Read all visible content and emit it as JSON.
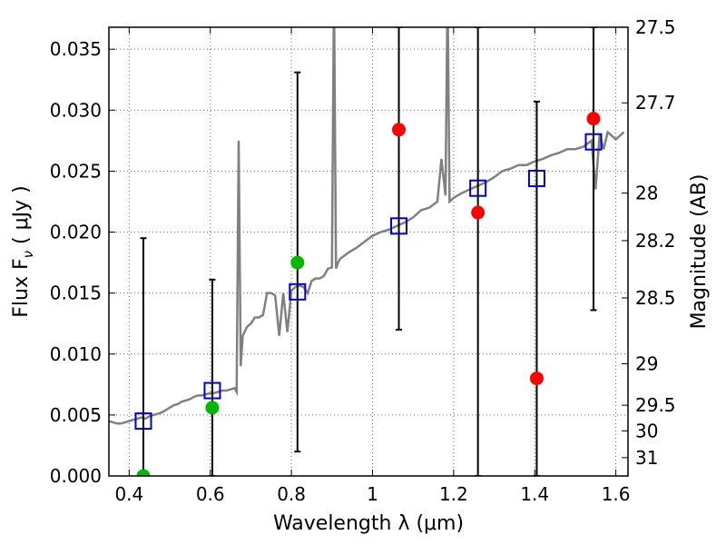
{
  "chart_data": {
    "type": "scatter",
    "xlabel": "Wavelength  λ (μm)",
    "ylabel": "Flux  F",
    "ylabel_subscript": "ν",
    "ylabel_unit": "  ( μJy )",
    "y2label": "Magnitude (AB)",
    "xlim": [
      0.35,
      1.63
    ],
    "ylim": [
      0.0,
      0.0368
    ],
    "grid": true,
    "x_ticks": [
      0.4,
      0.6,
      0.8,
      1.0,
      1.2,
      1.4,
      1.6
    ],
    "x_tick_labels": [
      "0.4",
      "0.6",
      "0.8",
      "1",
      "1.2",
      "1.4",
      "1.6"
    ],
    "y_ticks": [
      0.0,
      0.005,
      0.01,
      0.015,
      0.02,
      0.025,
      0.03,
      0.035
    ],
    "y_tick_labels": [
      "0.000",
      "0.005",
      "0.010",
      "0.015",
      "0.020",
      "0.025",
      "0.030",
      "0.035"
    ],
    "y2_tick_labels": [
      "27.5",
      "27.7",
      "28",
      "28.2",
      "28.5",
      "29",
      "29.5",
      "30",
      "31"
    ],
    "y2_tick_flux": [
      0.0368,
      0.0306,
      0.0232,
      0.0193,
      0.0146,
      0.0092,
      0.0058,
      0.0037,
      0.0015
    ],
    "colors": {
      "spectrum": "#808080",
      "model": "#0000cc",
      "detection": "#ff0000",
      "green": "#00b800",
      "errorbar": "#000000"
    },
    "series": [
      {
        "kind": "spectrum",
        "x": [
          0.35,
          0.36,
          0.37,
          0.38,
          0.39,
          0.4,
          0.41,
          0.42,
          0.43,
          0.44,
          0.45,
          0.46,
          0.47,
          0.48,
          0.49,
          0.5,
          0.51,
          0.52,
          0.53,
          0.54,
          0.55,
          0.56,
          0.57,
          0.58,
          0.59,
          0.6,
          0.61,
          0.62,
          0.63,
          0.64,
          0.65,
          0.66,
          0.665,
          0.67,
          0.675,
          0.68,
          0.69,
          0.7,
          0.71,
          0.72,
          0.73,
          0.74,
          0.75,
          0.76,
          0.77,
          0.78,
          0.79,
          0.8,
          0.81,
          0.82,
          0.83,
          0.84,
          0.85,
          0.86,
          0.87,
          0.88,
          0.89,
          0.9,
          0.905,
          0.91,
          0.915,
          0.92,
          0.94,
          0.96,
          0.98,
          1.0,
          1.02,
          1.04,
          1.06,
          1.08,
          1.1,
          1.12,
          1.14,
          1.16,
          1.17,
          1.18,
          1.185,
          1.19,
          1.2,
          1.22,
          1.24,
          1.26,
          1.28,
          1.3,
          1.32,
          1.34,
          1.36,
          1.38,
          1.4,
          1.42,
          1.44,
          1.46,
          1.48,
          1.5,
          1.52,
          1.54,
          1.55,
          1.56,
          1.57,
          1.58,
          1.6,
          1.62
        ],
        "y": [
          0.0045,
          0.0044,
          0.0043,
          0.0043,
          0.0044,
          0.0045,
          0.0046,
          0.0047,
          0.0048,
          0.0047,
          0.0049,
          0.005,
          0.0051,
          0.0052,
          0.0054,
          0.0056,
          0.0058,
          0.0059,
          0.0061,
          0.0062,
          0.0063,
          0.0065,
          0.0066,
          0.0066,
          0.0067,
          0.0068,
          0.0068,
          0.0069,
          0.007,
          0.007,
          0.0071,
          0.0072,
          0.0069,
          0.0275,
          0.009,
          0.0115,
          0.0122,
          0.0125,
          0.013,
          0.013,
          0.0132,
          0.015,
          0.015,
          0.0148,
          0.0115,
          0.015,
          0.0118,
          0.0152,
          0.0155,
          0.0156,
          0.0155,
          0.015,
          0.016,
          0.0162,
          0.0162,
          0.0164,
          0.017,
          0.0171,
          0.04,
          0.017,
          0.0175,
          0.0178,
          0.0183,
          0.0187,
          0.0192,
          0.0197,
          0.02,
          0.0202,
          0.0205,
          0.0208,
          0.0212,
          0.0218,
          0.022,
          0.0225,
          0.026,
          0.023,
          0.04,
          0.0225,
          0.0228,
          0.0232,
          0.0235,
          0.0238,
          0.0241,
          0.0245,
          0.025,
          0.0252,
          0.0255,
          0.0255,
          0.0258,
          0.026,
          0.0263,
          0.0265,
          0.0268,
          0.0268,
          0.027,
          0.0275,
          0.0235,
          0.028,
          0.0268,
          0.0282,
          0.0276,
          0.0282
        ]
      },
      {
        "kind": "errorbars",
        "x": [
          0.435,
          0.605,
          0.815,
          1.065,
          1.26,
          1.405,
          1.545
        ],
        "y": [
          0.0,
          0.0,
          0.0,
          0.0284,
          0.0216,
          0.008,
          0.0293
        ],
        "ylow": [
          0.0,
          0.0,
          0.002,
          0.012,
          0.0,
          0.0,
          0.0136
        ],
        "yhigh": [
          0.0195,
          0.0161,
          0.0331,
          0.0368,
          0.0368,
          0.0307,
          0.0368
        ]
      },
      {
        "kind": "model",
        "x": [
          0.435,
          0.605,
          0.815,
          1.065,
          1.26,
          1.405,
          1.545
        ],
        "y": [
          0.0045,
          0.007,
          0.0151,
          0.0205,
          0.0236,
          0.0244,
          0.0274
        ]
      },
      {
        "kind": "detection",
        "x": [
          1.065,
          1.26,
          1.405,
          1.545
        ],
        "y": [
          0.0284,
          0.0216,
          0.008,
          0.0293
        ]
      },
      {
        "kind": "green",
        "x": [
          0.435,
          0.605,
          0.815
        ],
        "y": [
          0.0,
          0.0056,
          0.0175
        ]
      }
    ]
  }
}
